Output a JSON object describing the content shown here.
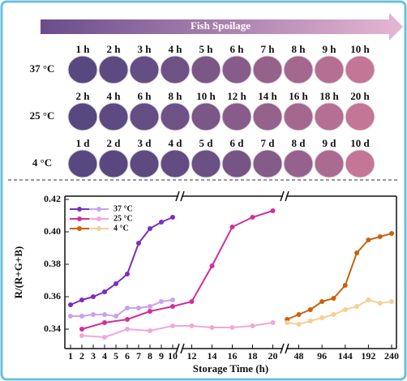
{
  "banner": "Fish Spoilage",
  "rows": [
    {
      "label": "37 °C",
      "times": [
        "1 h",
        "2 h",
        "3 h",
        "4 h",
        "5 h",
        "6 h",
        "7 h",
        "8 h",
        "9 h",
        "10 h"
      ]
    },
    {
      "label": "25 °C",
      "times": [
        "2 h",
        "4 h",
        "6 h",
        "8 h",
        "10 h",
        "12 h",
        "14 h",
        "16 h",
        "18 h",
        "20 h"
      ]
    },
    {
      "label": "4 °C",
      "times": [
        "1 d",
        "2 d",
        "3 d",
        "4 d",
        "5 d",
        "6 d",
        "7 d",
        "8 d",
        "9 d",
        "10 d"
      ]
    }
  ],
  "chart_data": {
    "type": "line",
    "xlabel": "Storage Time (h)",
    "ylabel": "R/(R+G+B)",
    "ylim": [
      0.328,
      0.422
    ],
    "yticks": [
      0.34,
      0.36,
      0.38,
      {
        "value": 0.4,
        "label": "0.40"
      },
      0.42
    ],
    "x_segments": [
      {
        "xlim": [
          0.5,
          10.5
        ],
        "xticks": [
          1,
          2,
          3,
          4,
          5,
          6,
          7,
          8,
          9,
          10
        ]
      },
      {
        "xlim": [
          11,
          21
        ],
        "xticks": [
          12,
          14,
          16,
          18,
          20
        ]
      },
      {
        "xlim": [
          22,
          250
        ],
        "xticks": [
          48,
          96,
          144,
          192,
          240
        ]
      }
    ],
    "series": [
      {
        "name": "37 °C",
        "color": "#7a2fc0",
        "x": [
          1,
          2,
          3,
          4,
          5,
          6,
          7,
          8,
          9,
          10
        ],
        "values": [
          0.355,
          0.358,
          0.36,
          0.363,
          0.368,
          0.374,
          0.393,
          0.402,
          0.406,
          0.409
        ]
      },
      {
        "color": "#c8a2ee",
        "x": [
          1,
          2,
          3,
          4,
          5,
          6,
          7,
          8,
          9,
          10
        ],
        "values": [
          0.348,
          0.348,
          0.349,
          0.349,
          0.348,
          0.353,
          0.353,
          0.354,
          0.357,
          0.358
        ]
      },
      {
        "name": "25 °C",
        "color": "#d0309a",
        "x": [
          2,
          4,
          6,
          8,
          10,
          12,
          14,
          16,
          18,
          20
        ],
        "values": [
          0.34,
          0.344,
          0.346,
          0.351,
          0.354,
          0.357,
          0.379,
          0.403,
          0.409,
          0.413
        ]
      },
      {
        "color": "#f0a8d8",
        "x": [
          2,
          4,
          6,
          8,
          10,
          12,
          14,
          16,
          18,
          20
        ],
        "values": [
          0.336,
          0.335,
          0.34,
          0.339,
          0.342,
          0.342,
          0.341,
          0.341,
          0.342,
          0.344
        ]
      },
      {
        "name": "4 °C",
        "color": "#c8620e",
        "x": [
          24,
          48,
          72,
          96,
          120,
          144,
          168,
          192,
          216,
          240
        ],
        "values": [
          0.346,
          0.349,
          0.352,
          0.357,
          0.359,
          0.367,
          0.387,
          0.395,
          0.397,
          0.399
        ]
      },
      {
        "color": "#f5cf98",
        "x": [
          24,
          48,
          72,
          96,
          120,
          144,
          168,
          192,
          216,
          240
        ],
        "values": [
          0.344,
          0.343,
          0.345,
          0.347,
          0.349,
          0.352,
          0.354,
          0.358,
          0.356,
          0.357
        ]
      }
    ]
  }
}
